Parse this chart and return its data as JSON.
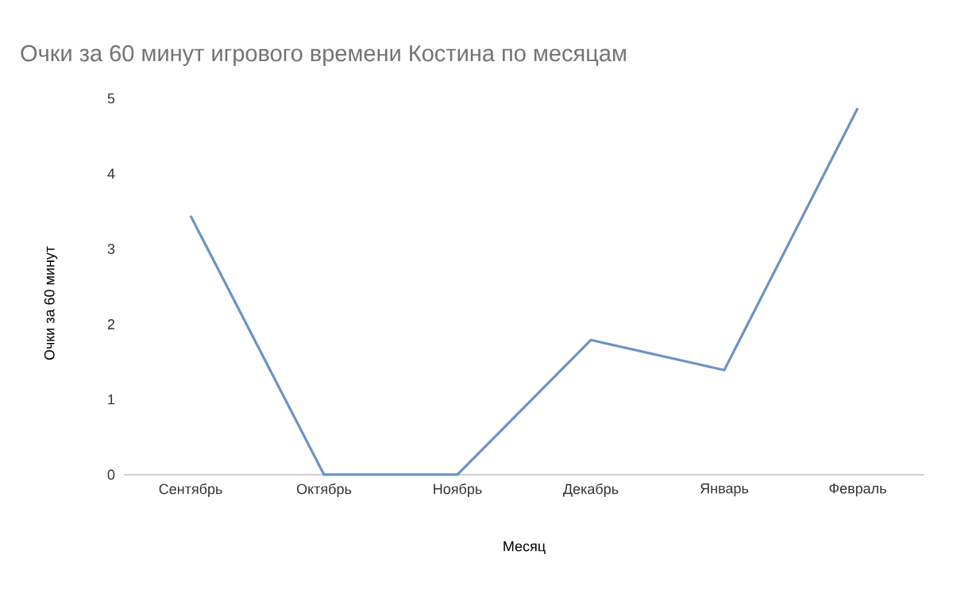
{
  "chart_data": {
    "type": "line",
    "title": "Очки за 60 минут игрового времени Костина по месяцам",
    "xlabel": "Месяц",
    "ylabel": "Очки за 60 минут",
    "categories": [
      "Сентябрь",
      "Октябрь",
      "Ноябрь",
      "Декабрь",
      "Январь",
      "Февраль"
    ],
    "series": [
      {
        "color": "#6b93c5",
        "values": [
          3.44,
          0,
          0,
          1.79,
          1.39,
          4.87
        ]
      }
    ],
    "ylim": [
      0,
      5
    ],
    "yticks": [
      0,
      1,
      2,
      3,
      4,
      5
    ],
    "grid": false,
    "marker": "none",
    "line_style": "solid"
  }
}
